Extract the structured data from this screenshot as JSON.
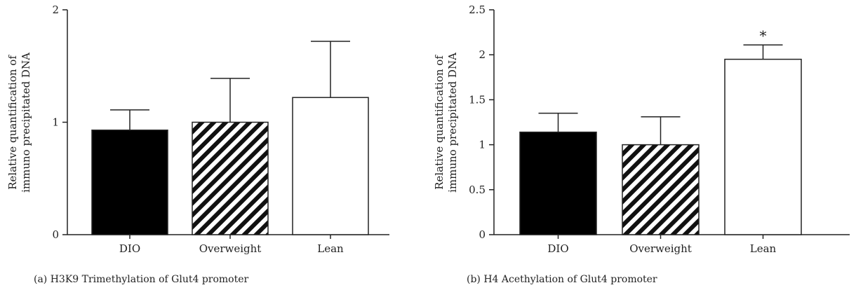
{
  "chart_data": [
    {
      "type": "bar",
      "caption": "(a)  H3K9 Trimethylation of Glut4 promoter",
      "ylabel_lines": [
        "Relative quantification of",
        "immuno precipitated DNA"
      ],
      "categories": [
        "DIO",
        "Overweight",
        "Lean"
      ],
      "values": [
        0.93,
        1.0,
        1.22
      ],
      "errors": [
        0.18,
        0.39,
        0.5
      ],
      "fills": [
        "solid-black",
        "diagonal-hatch",
        "white"
      ],
      "annotations": [
        "",
        "",
        ""
      ],
      "ylim": [
        0,
        2
      ],
      "yticks": [
        0,
        1,
        2
      ],
      "ytick_labels": [
        "0",
        "1",
        "2"
      ]
    },
    {
      "type": "bar",
      "caption": "(b)  H4 Acethylation of Glut4 promoter",
      "ylabel_lines": [
        "Relative quantification of",
        "immuno precipitated DNA"
      ],
      "categories": [
        "DIO",
        "Overweight",
        "Lean"
      ],
      "values": [
        1.14,
        1.0,
        1.95
      ],
      "errors": [
        0.21,
        0.31,
        0.16
      ],
      "fills": [
        "solid-black",
        "diagonal-hatch",
        "white"
      ],
      "annotations": [
        "",
        "",
        "*"
      ],
      "ylim": [
        0,
        2.5
      ],
      "yticks": [
        0,
        0.5,
        1,
        1.5,
        2,
        2.5
      ],
      "ytick_labels": [
        "0",
        "0.5",
        "1",
        "1.5",
        "2",
        "2.5"
      ]
    }
  ],
  "colors": {
    "axis": "#222222",
    "bar_solid": "#000000",
    "bar_white": "#ffffff",
    "hatch": "#111111"
  }
}
